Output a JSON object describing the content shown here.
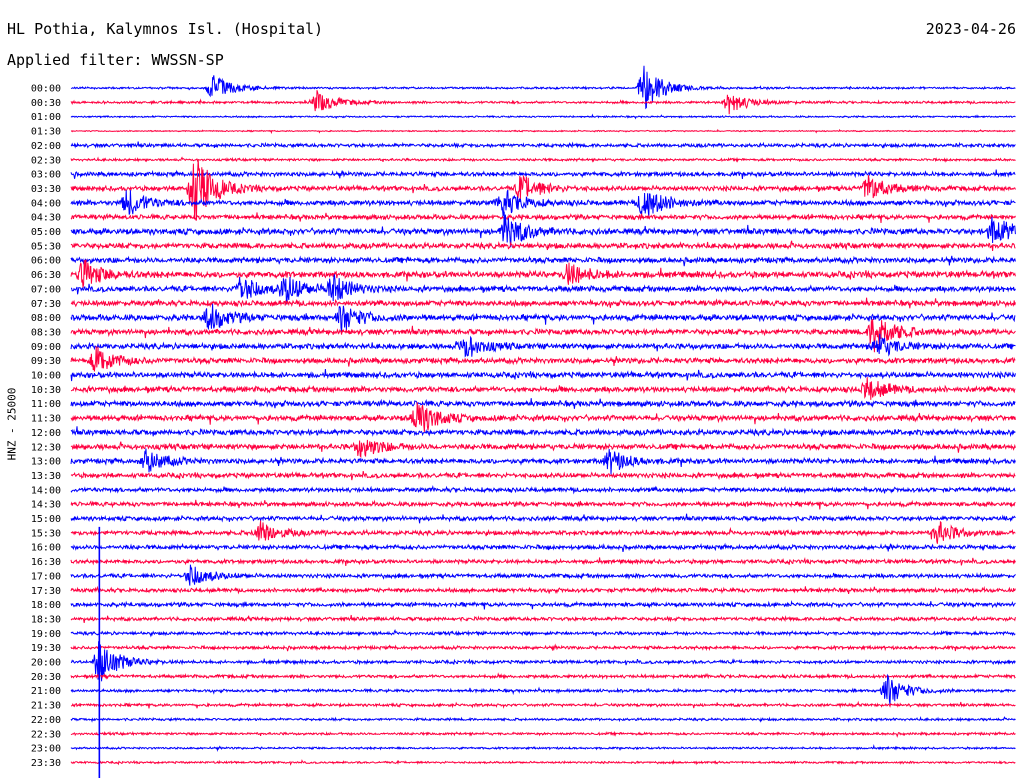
{
  "header": {
    "station": "HL Pothia, Kalymnos Isl. (Hospital)",
    "date": "2023-04-26",
    "filter": "Applied filter: WWSSN-SP"
  },
  "channel_label": "HNZ - 25000",
  "colors": {
    "trace_a": "#0000ff",
    "trace_b": "#ff0040",
    "text": "#000000"
  },
  "chart_data": {
    "type": "line",
    "x_unit": "minutes past row start",
    "x_range": [
      0,
      30
    ],
    "row_labels": [
      "00:00",
      "00:30",
      "01:00",
      "01:30",
      "02:00",
      "02:30",
      "03:00",
      "03:30",
      "04:00",
      "04:30",
      "05:00",
      "05:30",
      "06:00",
      "06:30",
      "07:00",
      "07:30",
      "08:00",
      "08:30",
      "09:00",
      "09:30",
      "10:00",
      "10:30",
      "11:00",
      "11:30",
      "12:00",
      "12:30",
      "13:00",
      "13:30",
      "14:00",
      "14:30",
      "15:00",
      "15:30",
      "16:00",
      "16:30",
      "17:00",
      "17:30",
      "18:00",
      "18:30",
      "19:00",
      "19:30",
      "20:00",
      "20:30",
      "21:00",
      "21:30",
      "22:00",
      "22:30",
      "23:00",
      "23:30"
    ],
    "row_colors": [
      "blue",
      "red"
    ],
    "noise_level": [
      0.25,
      0.3,
      0.2,
      0.15,
      0.45,
      0.3,
      0.55,
      0.6,
      0.65,
      0.6,
      0.75,
      0.7,
      0.7,
      0.8,
      0.7,
      0.7,
      0.75,
      0.7,
      0.7,
      0.7,
      0.7,
      0.7,
      0.7,
      0.7,
      0.7,
      0.7,
      0.65,
      0.6,
      0.55,
      0.55,
      0.55,
      0.55,
      0.55,
      0.5,
      0.5,
      0.5,
      0.5,
      0.45,
      0.4,
      0.4,
      0.4,
      0.4,
      0.35,
      0.35,
      0.3,
      0.3,
      0.25,
      0.25
    ],
    "events": [
      {
        "row": 0,
        "minute": 4.5,
        "amplitude": 3
      },
      {
        "row": 0,
        "minute": 18.2,
        "amplitude": 5
      },
      {
        "row": 1,
        "minute": 7.8,
        "amplitude": 2.5
      },
      {
        "row": 1,
        "minute": 20.9,
        "amplitude": 2.5
      },
      {
        "row": 7,
        "minute": 3.9,
        "amplitude": 8
      },
      {
        "row": 7,
        "minute": 14.3,
        "amplitude": 3
      },
      {
        "row": 7,
        "minute": 25.3,
        "amplitude": 3
      },
      {
        "row": 8,
        "minute": 1.8,
        "amplitude": 3
      },
      {
        "row": 8,
        "minute": 13.7,
        "amplitude": 3
      },
      {
        "row": 8,
        "minute": 18.2,
        "amplitude": 4
      },
      {
        "row": 10,
        "minute": 13.8,
        "amplitude": 4
      },
      {
        "row": 10,
        "minute": 29.3,
        "amplitude": 3.5
      },
      {
        "row": 13,
        "minute": 0.4,
        "amplitude": 3
      },
      {
        "row": 13,
        "minute": 15.8,
        "amplitude": 2.5
      },
      {
        "row": 14,
        "minute": 5.4,
        "amplitude": 3
      },
      {
        "row": 14,
        "minute": 6.8,
        "amplitude": 3
      },
      {
        "row": 14,
        "minute": 8.3,
        "amplitude": 3
      },
      {
        "row": 16,
        "minute": 4.4,
        "amplitude": 3
      },
      {
        "row": 16,
        "minute": 8.6,
        "amplitude": 3
      },
      {
        "row": 17,
        "minute": 25.5,
        "amplitude": 4.5
      },
      {
        "row": 18,
        "minute": 12.5,
        "amplitude": 2.5
      },
      {
        "row": 18,
        "minute": 25.6,
        "amplitude": 2.5
      },
      {
        "row": 19,
        "minute": 0.8,
        "amplitude": 3
      },
      {
        "row": 21,
        "minute": 25.3,
        "amplitude": 2.5
      },
      {
        "row": 23,
        "minute": 11.0,
        "amplitude": 4
      },
      {
        "row": 25,
        "minute": 9.2,
        "amplitude": 2.5
      },
      {
        "row": 26,
        "minute": 2.4,
        "amplitude": 2.5
      },
      {
        "row": 26,
        "minute": 17.1,
        "amplitude": 2.5
      },
      {
        "row": 31,
        "minute": 6.0,
        "amplitude": 2.5
      },
      {
        "row": 31,
        "minute": 27.5,
        "amplitude": 2.5
      },
      {
        "row": 34,
        "minute": 3.8,
        "amplitude": 2.5
      },
      {
        "row": 40,
        "minute": 0.9,
        "amplitude": 5
      },
      {
        "row": 42,
        "minute": 25.9,
        "amplitude": 3.5
      }
    ],
    "spike": {
      "minute": 0.9,
      "from_row": 31,
      "to_row": 47
    }
  }
}
